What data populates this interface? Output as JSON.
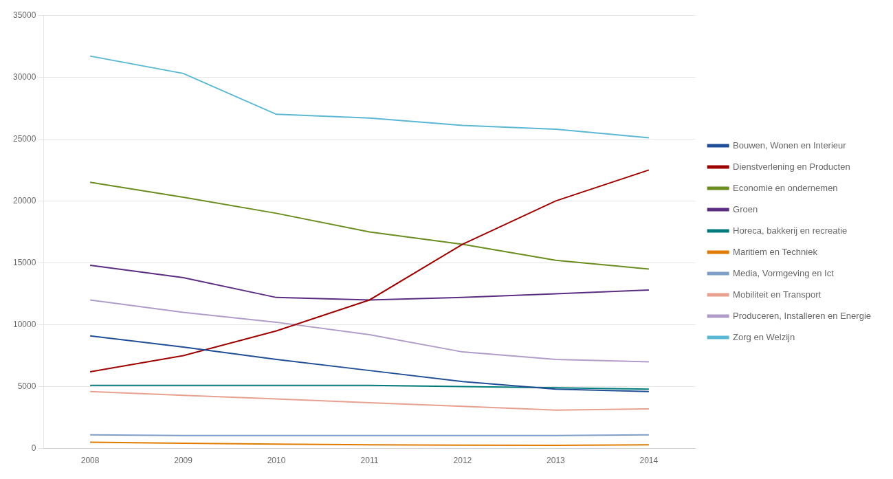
{
  "chart_data": {
    "type": "line",
    "categories": [
      "2008",
      "2009",
      "2010",
      "2011",
      "2012",
      "2013",
      "2014"
    ],
    "series": [
      {
        "name": "Bouwen, Wonen en Interieur",
        "color": "#1f4e96",
        "values": [
          9100,
          8200,
          7200,
          6300,
          5400,
          4800,
          4600
        ]
      },
      {
        "name": "Dienstverlening en Producten",
        "color": "#9e0000",
        "values": [
          6200,
          7500,
          9500,
          12000,
          16500,
          20000,
          22500
        ]
      },
      {
        "name": "Economie en ondernemen",
        "color": "#6b8c1e",
        "values": [
          21500,
          20300,
          19000,
          17500,
          16500,
          15200,
          14500
        ]
      },
      {
        "name": "Groen",
        "color": "#5a2c82",
        "values": [
          14800,
          13800,
          12200,
          12000,
          12200,
          12500,
          12800
        ]
      },
      {
        "name": "Horeca, bakkerij en recreatie",
        "color": "#007b7b",
        "values": [
          5100,
          5100,
          5100,
          5100,
          5000,
          4900,
          4800
        ]
      },
      {
        "name": "Maritiem en Techniek",
        "color": "#e07b00",
        "values": [
          500,
          420,
          350,
          300,
          270,
          250,
          300
        ]
      },
      {
        "name": "Media, Vormgeving en Ict",
        "color": "#7e9ec8",
        "values": [
          1100,
          1050,
          1050,
          1050,
          1050,
          1050,
          1100
        ]
      },
      {
        "name": "Mobiliteit en Transport",
        "color": "#e8a090",
        "values": [
          4600,
          4300,
          4000,
          3700,
          3400,
          3100,
          3200
        ]
      },
      {
        "name": "Produceren, Installeren en Energie",
        "color": "#b09cc8",
        "values": [
          12000,
          11000,
          10200,
          9200,
          7800,
          7200,
          7000
        ]
      },
      {
        "name": "Zorg en Welzijn",
        "color": "#5bb8d4",
        "values": [
          31700,
          30300,
          27000,
          26700,
          26100,
          25800,
          25100
        ]
      }
    ],
    "ylim": [
      0,
      35000
    ],
    "yticks": [
      0,
      5000,
      10000,
      15000,
      20000,
      25000,
      30000,
      35000
    ],
    "grid": "y",
    "legend": "right"
  }
}
